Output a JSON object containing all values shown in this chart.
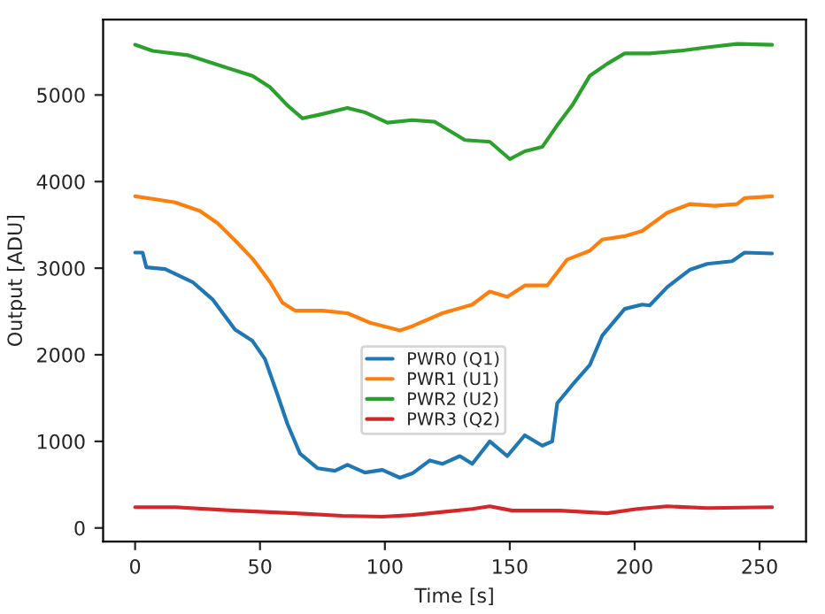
{
  "chart_data": {
    "type": "line",
    "xlabel": "Time [s]",
    "ylabel": "Output [ADU]",
    "xlim": [
      -12.8,
      268.6
    ],
    "xticks": [
      0,
      50,
      100,
      150,
      200,
      250
    ],
    "ylim": [
      -157,
      5870
    ],
    "yticks": [
      0,
      1000,
      2000,
      3000,
      4000,
      5000
    ],
    "legend": "center",
    "grid": false,
    "series": [
      {
        "name": "PWR0 (Q1)",
        "color": "#1f77b4",
        "x": [
          0,
          3,
          4.5,
          12,
          23,
          31,
          40,
          47,
          52,
          57,
          61,
          66,
          73,
          80,
          85,
          92,
          99,
          106,
          111,
          118,
          123,
          130,
          135,
          142,
          149,
          156,
          163,
          167,
          169,
          175,
          182,
          187,
          196,
          203,
          206,
          213,
          222,
          229,
          239,
          244,
          255
        ],
        "values": [
          3180,
          3180,
          3010,
          2990,
          2840,
          2640,
          2290,
          2160,
          1950,
          1540,
          1200,
          860,
          690,
          660,
          730,
          640,
          670,
          580,
          630,
          780,
          740,
          830,
          740,
          1000,
          830,
          1070,
          950,
          1000,
          1440,
          1650,
          1880,
          2220,
          2530,
          2580,
          2570,
          2780,
          2980,
          3050,
          3080,
          3180,
          3170
        ]
      },
      {
        "name": "PWR1 (U1)",
        "color": "#ff7f0e",
        "x": [
          0,
          7,
          16,
          26,
          33,
          40,
          47,
          54,
          59,
          64,
          75,
          85,
          94,
          106,
          111,
          123,
          135,
          142,
          149,
          156,
          165,
          173,
          182,
          187,
          196,
          203,
          213,
          222,
          232,
          241,
          244,
          255
        ],
        "values": [
          3830,
          3800,
          3760,
          3660,
          3520,
          3320,
          3110,
          2840,
          2600,
          2510,
          2510,
          2480,
          2370,
          2280,
          2330,
          2480,
          2580,
          2730,
          2670,
          2800,
          2800,
          3100,
          3200,
          3330,
          3370,
          3430,
          3640,
          3740,
          3720,
          3740,
          3810,
          3830
        ]
      },
      {
        "name": "PWR2 (U2)",
        "color": "#2ca02c",
        "x": [
          0,
          7,
          21,
          35,
          47,
          54,
          61,
          67,
          75,
          85,
          92,
          101,
          111,
          120,
          132,
          142,
          150,
          156,
          163,
          169,
          175,
          182,
          189,
          196,
          206,
          218,
          229,
          241,
          255
        ],
        "values": [
          5580,
          5510,
          5460,
          5330,
          5220,
          5090,
          4880,
          4730,
          4780,
          4850,
          4800,
          4680,
          4710,
          4690,
          4480,
          4460,
          4260,
          4350,
          4400,
          4650,
          4880,
          5220,
          5360,
          5480,
          5480,
          5510,
          5550,
          5590,
          5580
        ]
      },
      {
        "name": "PWR3 (Q2)",
        "color": "#d62728",
        "x": [
          0,
          16,
          40,
          64,
          83,
          99,
          111,
          135,
          142,
          151,
          170,
          189,
          201,
          213,
          229,
          255
        ],
        "values": [
          240,
          240,
          200,
          170,
          140,
          130,
          150,
          220,
          250,
          200,
          200,
          170,
          220,
          250,
          230,
          240
        ]
      }
    ]
  }
}
